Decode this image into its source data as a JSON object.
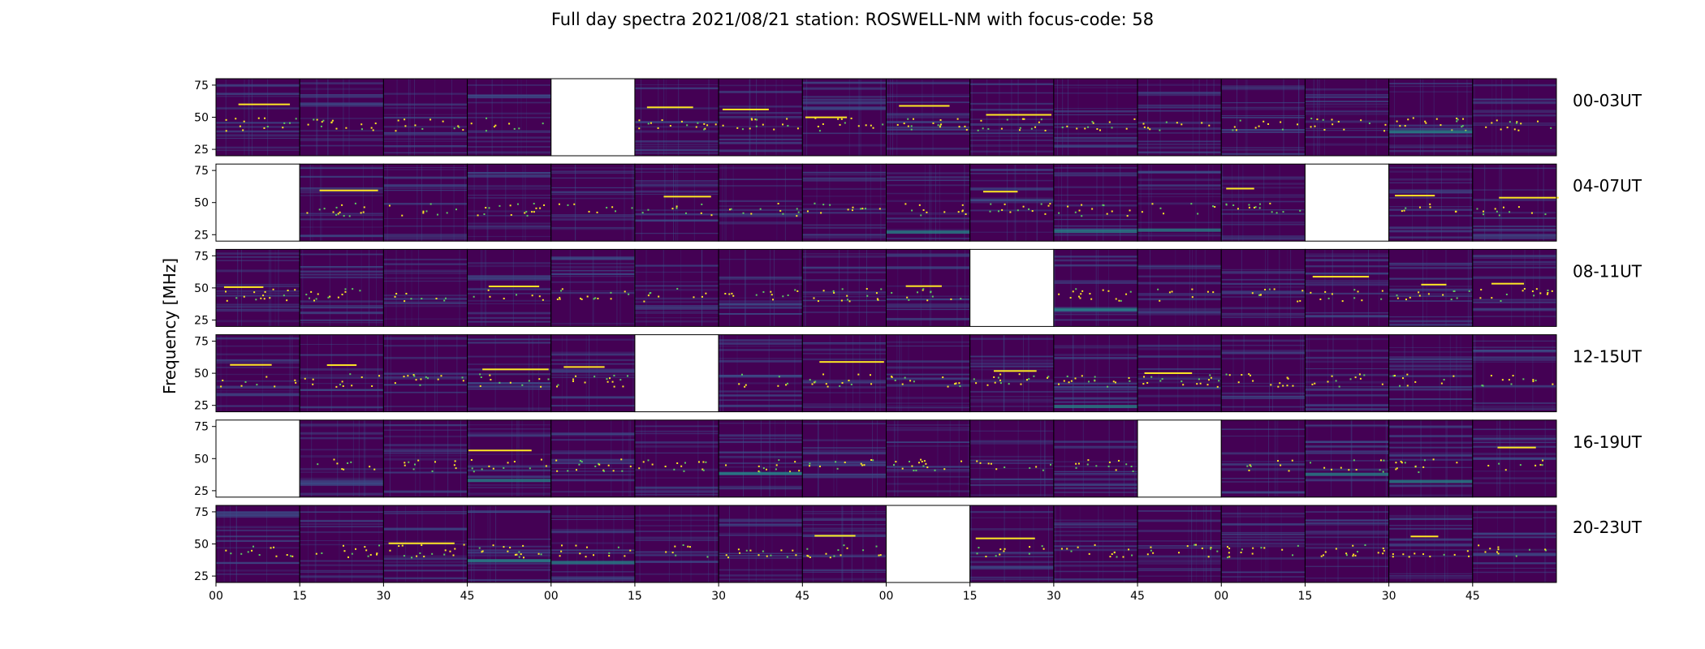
{
  "chart_data": {
    "type": "heatmap",
    "title": "Full day spectra 2021/08/21 station: ROSWELL-NM with focus-code: 58",
    "ylabel": "Frequency [MHz]",
    "xlabel": "",
    "ylim": [
      20,
      80
    ],
    "yticks": [
      "25",
      "50",
      "75"
    ],
    "xticks": [
      "00",
      "15",
      "30",
      "45",
      "00",
      "15",
      "30",
      "45",
      "00",
      "15",
      "30",
      "45",
      "00",
      "15",
      "30",
      "45"
    ],
    "grid": false,
    "colormap": "viridis",
    "colors": {
      "background": "#440154",
      "mid": "#3b528b",
      "teal": "#21918c",
      "bright": "#fde725",
      "green": "#5ec962",
      "missing": "#ffffff"
    },
    "rows": [
      {
        "label": "00-03UT",
        "missing_panels": [
          4
        ]
      },
      {
        "label": "04-07UT",
        "missing_panels": [
          0,
          13
        ]
      },
      {
        "label": "08-11UT",
        "missing_panels": [
          9
        ]
      },
      {
        "label": "12-15UT",
        "missing_panels": [
          5
        ]
      },
      {
        "label": "16-19UT",
        "missing_panels": [
          0,
          11
        ]
      },
      {
        "label": "20-23UT",
        "missing_panels": [
          8
        ]
      }
    ],
    "panels_per_row": 16,
    "panel_minutes": 15
  }
}
